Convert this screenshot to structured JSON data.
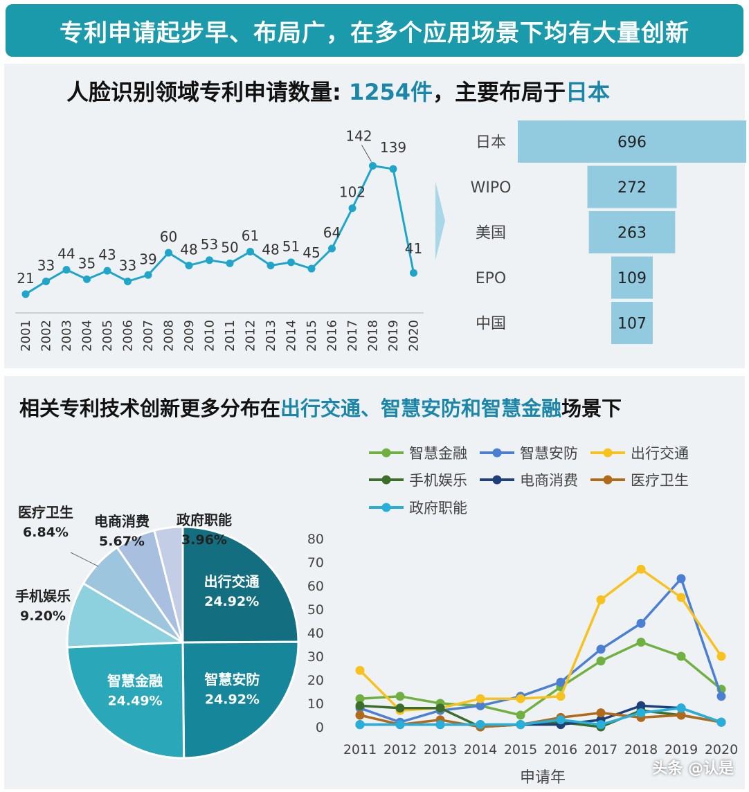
{
  "banner": {
    "title": "专利申请起步早、布局广，在多个应用场景下均有大量创新"
  },
  "top_title": {
    "prefix": "人脸识别领域专利申请数量: ",
    "count": "1254件",
    "middle": "，主要布局于",
    "country": "日本"
  },
  "bottom_title": {
    "prefix": "相关专利技术创新更多分布在",
    "highlight": "出行交通、智慧安防和智慧金融",
    "suffix": "场景下"
  },
  "watermark": "头条 @认是",
  "colors": {
    "banner": "#1b9aab",
    "line": "#1fa5c9",
    "funnel": "#92cbdf",
    "highlight": "#1b86a8"
  },
  "chart_data": [
    {
      "type": "line",
      "categories": [
        "2001",
        "2002",
        "2003",
        "2004",
        "2005",
        "2006",
        "2007",
        "2008",
        "2009",
        "2010",
        "2011",
        "2012",
        "2013",
        "2014",
        "2015",
        "2016",
        "2017",
        "2018",
        "2019",
        "2020"
      ],
      "values": [
        21,
        33,
        44,
        35,
        43,
        33,
        39,
        60,
        48,
        53,
        50,
        61,
        48,
        51,
        45,
        64,
        102,
        142,
        139,
        41
      ],
      "ylim": [
        0,
        160
      ],
      "grid": false
    },
    {
      "type": "bar",
      "orientation": "horizontal-funnel",
      "categories": [
        "日本",
        "WIPO",
        "美国",
        "EPO",
        "中国"
      ],
      "values": [
        696,
        272,
        263,
        109,
        107
      ]
    },
    {
      "type": "pie",
      "labels": [
        "出行交通",
        "智慧安防",
        "智慧金融",
        "手机娱乐",
        "医疗卫生",
        "电商消费",
        "政府职能"
      ],
      "values": [
        24.92,
        24.92,
        24.49,
        9.2,
        6.84,
        5.67,
        3.96
      ],
      "value_labels": [
        "24.92%",
        "24.92%",
        "24.49%",
        "9.20%",
        "6.84%",
        "5.67%",
        "3.96%"
      ],
      "colors": [
        "#136f80",
        "#16869b",
        "#2aa8ba",
        "#8dd0de",
        "#9dc6de",
        "#a8bfe0",
        "#c4cde6"
      ]
    },
    {
      "type": "line",
      "xlabel": "申请年",
      "categories": [
        "2011",
        "2012",
        "2013",
        "2014",
        "2015",
        "2016",
        "2017",
        "2018",
        "2019",
        "2020"
      ],
      "ylim": [
        0,
        80
      ],
      "yticks": [
        0,
        10,
        20,
        30,
        40,
        50,
        60,
        70,
        80
      ],
      "legend": "top",
      "series": [
        {
          "name": "智慧金融",
          "color": "#70b040",
          "values": [
            12,
            13,
            10,
            9,
            5,
            17,
            28,
            36,
            30,
            16
          ]
        },
        {
          "name": "智慧安防",
          "color": "#4a7fd4",
          "values": [
            8,
            2,
            7,
            9,
            13,
            19,
            33,
            44,
            63,
            13
          ]
        },
        {
          "name": "出行交通",
          "color": "#f7c21d",
          "values": [
            24,
            7,
            8,
            12,
            12,
            13,
            54,
            67,
            55,
            30
          ]
        },
        {
          "name": "手机娱乐",
          "color": "#3c6e2b",
          "values": [
            9,
            8,
            8,
            0,
            1,
            2,
            0,
            7,
            5,
            2
          ]
        },
        {
          "name": "电商消费",
          "color": "#1f3f7a",
          "values": [
            1,
            1,
            1,
            1,
            1,
            1,
            3,
            9,
            8,
            2
          ]
        },
        {
          "name": "医疗卫生",
          "color": "#b06a1a",
          "values": [
            5,
            1,
            3,
            0,
            1,
            4,
            6,
            4,
            5,
            2
          ]
        },
        {
          "name": "政府职能",
          "color": "#27afdb",
          "values": [
            1,
            1,
            1,
            1,
            1,
            3,
            1,
            6,
            8,
            2
          ]
        }
      ]
    }
  ]
}
